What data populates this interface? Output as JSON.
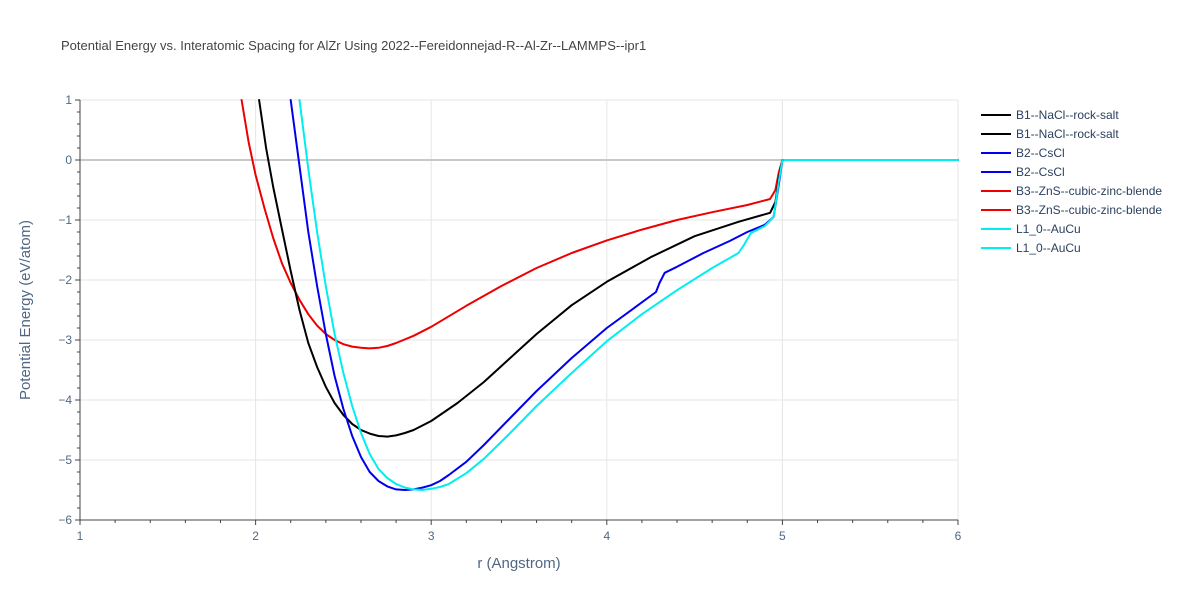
{
  "chart_data": {
    "type": "line",
    "title": "Potential Energy vs. Interatomic Spacing for AlZr Using 2022--Fereidonnejad-R--Al-Zr--LAMMPS--ipr1",
    "xlabel": "r (Angstrom)",
    "ylabel": "Potential Energy (eV/atom)",
    "xlim": [
      1,
      6
    ],
    "ylim": [
      -6,
      1
    ],
    "xticks": [
      1,
      2,
      3,
      4,
      5,
      6
    ],
    "yticks": [
      -6,
      -5,
      -4,
      -3,
      -2,
      -1,
      0,
      1
    ],
    "xtick_labels": [
      "1",
      "2",
      "3",
      "4",
      "5",
      "6"
    ],
    "ytick_labels": [
      "−6",
      "−5",
      "−4",
      "−3",
      "−2",
      "−1",
      "0",
      "1"
    ],
    "grid": true,
    "legend_position": "right",
    "series": [
      {
        "name": "B1--NaCl--rock-salt",
        "color": "#000000",
        "x": [
          2.02,
          2.06,
          2.1,
          2.15,
          2.2,
          2.25,
          2.3,
          2.35,
          2.4,
          2.45,
          2.5,
          2.55,
          2.6,
          2.65,
          2.7,
          2.75,
          2.8,
          2.85,
          2.9,
          3.0,
          3.15,
          3.3,
          3.45,
          3.6,
          3.8,
          4.0,
          4.25,
          4.5,
          4.75,
          4.93,
          4.96,
          4.98,
          5.0
        ],
        "y": [
          1.0,
          0.2,
          -0.45,
          -1.15,
          -1.85,
          -2.5,
          -3.05,
          -3.45,
          -3.78,
          -4.05,
          -4.25,
          -4.4,
          -4.5,
          -4.56,
          -4.6,
          -4.61,
          -4.59,
          -4.55,
          -4.5,
          -4.35,
          -4.05,
          -3.7,
          -3.3,
          -2.9,
          -2.42,
          -2.03,
          -1.62,
          -1.27,
          -1.03,
          -0.88,
          -0.7,
          -0.3,
          0.0
        ]
      },
      {
        "name": "B1--NaCl--rock-salt",
        "color": "#000000",
        "x": [
          5.0,
          6.0
        ],
        "y": [
          0.0,
          0.0
        ]
      },
      {
        "name": "B2--CsCl",
        "color": "#0000ee",
        "x": [
          2.2,
          2.25,
          2.3,
          2.35,
          2.4,
          2.45,
          2.5,
          2.55,
          2.6,
          2.65,
          2.7,
          2.75,
          2.8,
          2.85,
          2.9,
          2.95,
          3.0,
          3.05,
          3.1,
          3.2,
          3.3,
          3.45,
          3.6,
          3.8,
          4.0,
          4.15,
          4.28,
          4.3,
          4.33,
          4.4,
          4.55,
          4.7,
          4.8,
          4.9,
          4.95,
          4.98,
          5.0
        ],
        "y": [
          1.0,
          -0.1,
          -1.2,
          -2.1,
          -2.9,
          -3.6,
          -4.15,
          -4.6,
          -4.95,
          -5.2,
          -5.35,
          -5.44,
          -5.49,
          -5.5,
          -5.49,
          -5.46,
          -5.42,
          -5.35,
          -5.25,
          -5.03,
          -4.75,
          -4.3,
          -3.85,
          -3.3,
          -2.8,
          -2.48,
          -2.2,
          -2.05,
          -1.88,
          -1.78,
          -1.55,
          -1.35,
          -1.2,
          -1.08,
          -0.95,
          -0.4,
          0.0
        ]
      },
      {
        "name": "B2--CsCl",
        "color": "#0000ee",
        "x": [
          5.0,
          6.0
        ],
        "y": [
          0.0,
          0.0
        ]
      },
      {
        "name": "B3--ZnS--cubic-zinc-blende",
        "color": "#ee0000",
        "x": [
          1.92,
          1.96,
          2.0,
          2.05,
          2.1,
          2.15,
          2.2,
          2.25,
          2.3,
          2.35,
          2.4,
          2.45,
          2.5,
          2.55,
          2.6,
          2.65,
          2.7,
          2.75,
          2.8,
          2.9,
          3.0,
          3.2,
          3.4,
          3.6,
          3.8,
          4.0,
          4.2,
          4.4,
          4.6,
          4.8,
          4.93,
          4.96,
          4.98,
          5.0
        ],
        "y": [
          1.0,
          0.3,
          -0.25,
          -0.8,
          -1.3,
          -1.72,
          -2.05,
          -2.33,
          -2.57,
          -2.76,
          -2.9,
          -3.0,
          -3.07,
          -3.11,
          -3.13,
          -3.14,
          -3.13,
          -3.1,
          -3.05,
          -2.93,
          -2.78,
          -2.43,
          -2.1,
          -1.8,
          -1.55,
          -1.34,
          -1.16,
          -1.0,
          -0.87,
          -0.75,
          -0.65,
          -0.5,
          -0.2,
          0.0
        ]
      },
      {
        "name": "B3--ZnS--cubic-zinc-blende",
        "color": "#ee0000",
        "x": [
          5.0,
          6.0
        ],
        "y": [
          0.0,
          0.0
        ]
      },
      {
        "name": "L1_0--AuCu",
        "color": "#00eeee",
        "x": [
          2.25,
          2.3,
          2.35,
          2.4,
          2.45,
          2.5,
          2.55,
          2.6,
          2.65,
          2.7,
          2.75,
          2.8,
          2.85,
          2.9,
          2.95,
          3.0,
          3.05,
          3.1,
          3.2,
          3.3,
          3.45,
          3.6,
          3.8,
          4.0,
          4.2,
          4.4,
          4.6,
          4.75,
          4.78,
          4.82,
          4.9,
          4.95,
          4.98,
          5.0
        ],
        "y": [
          1.0,
          -0.15,
          -1.2,
          -2.1,
          -2.9,
          -3.55,
          -4.1,
          -4.55,
          -4.9,
          -5.15,
          -5.3,
          -5.4,
          -5.46,
          -5.49,
          -5.5,
          -5.48,
          -5.45,
          -5.4,
          -5.22,
          -4.98,
          -4.55,
          -4.1,
          -3.55,
          -3.02,
          -2.57,
          -2.17,
          -1.8,
          -1.55,
          -1.42,
          -1.22,
          -1.1,
          -0.95,
          -0.35,
          0.0
        ]
      },
      {
        "name": "L1_0--AuCu",
        "color": "#00eeee",
        "x": [
          5.0,
          6.0
        ],
        "y": [
          0.0,
          0.0
        ]
      }
    ]
  }
}
